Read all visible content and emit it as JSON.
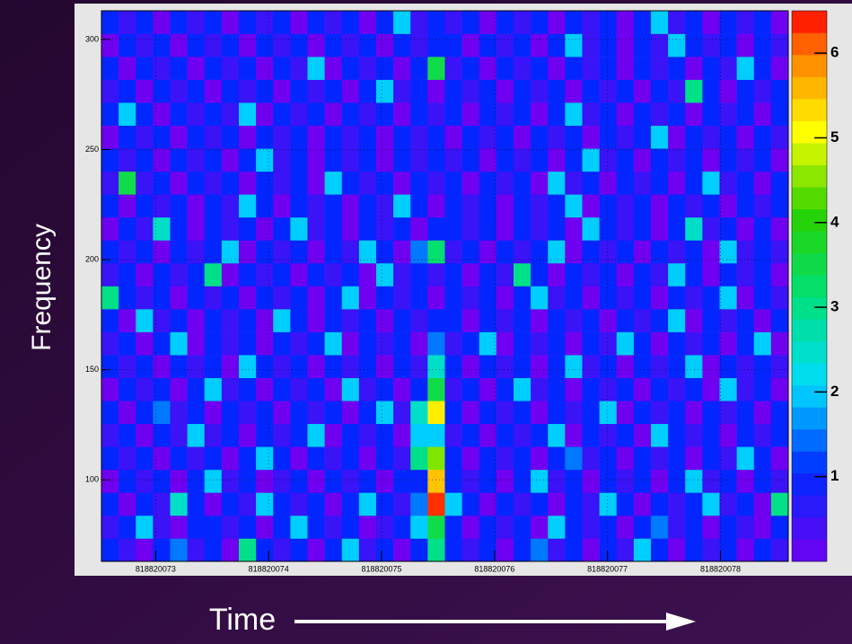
{
  "chart_data": {
    "type": "heatmap",
    "xlabel": "Time",
    "ylabel": "Frequency",
    "xlim": [
      818820072.52,
      818820078.6
    ],
    "xticks": [
      818820073,
      818820074,
      818820075,
      818820076,
      818820077,
      818820078
    ],
    "ylim": [
      63,
      313
    ],
    "yticks": [
      100,
      150,
      200,
      250,
      300
    ],
    "zlim": [
      0,
      6.5
    ],
    "zticks": [
      1,
      2,
      3,
      4,
      5,
      6
    ],
    "grid": true,
    "z": [
      [
        1,
        0.5,
        0,
        1,
        1.5,
        0.5,
        1,
        0,
        3,
        1,
        0.5,
        1,
        0,
        1,
        2,
        0.5,
        1,
        0,
        1,
        3,
        1,
        0.5,
        1,
        0,
        1,
        1.5,
        0.5,
        1,
        0,
        1,
        0.5,
        2,
        1,
        0,
        1,
        0.5,
        1,
        0,
        1,
        0.5
      ],
      [
        0.5,
        1,
        2,
        0.5,
        0,
        1,
        1,
        0.5,
        1,
        0,
        1,
        2,
        1,
        0.5,
        1,
        0,
        0.5,
        1,
        2,
        3.5,
        1,
        0,
        1,
        0.5,
        1,
        0,
        2,
        1,
        0.5,
        1,
        0,
        1,
        1.5,
        0.5,
        1,
        0,
        1,
        0.5,
        0,
        1
      ],
      [
        1,
        0,
        1,
        0.5,
        2.5,
        1,
        0,
        1,
        0.5,
        2,
        1,
        0.5,
        1,
        0,
        1,
        2,
        1,
        0.5,
        1.5,
        6.3,
        2,
        1,
        0,
        1,
        0.5,
        1,
        0,
        1,
        0.5,
        2,
        1,
        0,
        1,
        0.5,
        1,
        2,
        0.5,
        1,
        0,
        3
      ],
      [
        0,
        1,
        0.5,
        1,
        0,
        1,
        2,
        0.5,
        1,
        0,
        0.5,
        1,
        0,
        1,
        0.5,
        1,
        0,
        1,
        1,
        5.5,
        1,
        0.5,
        1,
        0,
        1,
        2,
        0.5,
        1,
        0,
        1,
        0.5,
        1,
        0,
        1,
        2,
        0.5,
        1,
        0,
        1,
        0.5
      ],
      [
        1,
        0.5,
        1,
        0,
        1,
        0.5,
        1,
        0,
        1,
        2,
        1,
        0,
        1,
        0.5,
        1,
        0,
        1,
        0.5,
        3,
        4.5,
        1,
        0,
        1,
        0.5,
        1,
        0,
        1,
        1.5,
        0.5,
        1,
        0,
        1,
        0.5,
        1,
        0,
        1,
        0.5,
        2,
        1,
        0
      ],
      [
        0.5,
        1,
        0,
        1,
        0.5,
        2,
        0.5,
        1,
        0,
        1,
        0.5,
        1,
        2,
        0,
        1,
        0.5,
        1,
        0,
        2,
        2,
        0.5,
        1,
        0,
        1,
        0.5,
        1,
        2,
        0,
        1,
        0.5,
        1,
        0,
        2,
        1,
        0.5,
        1,
        0,
        1,
        0.5,
        1
      ],
      [
        1,
        0,
        1,
        1.5,
        0.5,
        1,
        0,
        1,
        0.5,
        1,
        0,
        1,
        0.5,
        1,
        0,
        1,
        2,
        0.5,
        2.5,
        5.2,
        1,
        0,
        1,
        0.5,
        1,
        0,
        1,
        0.5,
        1,
        2,
        0,
        1,
        0.5,
        1,
        0,
        1,
        0.5,
        1,
        0,
        1
      ],
      [
        0,
        1,
        0.5,
        1,
        0,
        1,
        2,
        0.5,
        1,
        0,
        1,
        0.5,
        1,
        0,
        2,
        0.5,
        1,
        0,
        1,
        3.5,
        0.5,
        1,
        0,
        1,
        2,
        0.5,
        1,
        0,
        1,
        0.5,
        1,
        0,
        1,
        0.5,
        1,
        0,
        2,
        0.5,
        1,
        0
      ],
      [
        1,
        0.5,
        1,
        0,
        1,
        0.5,
        1,
        0,
        2,
        1,
        0.5,
        1,
        0,
        1,
        0.5,
        1,
        0,
        1,
        0.5,
        2.5,
        1,
        0,
        1,
        0.5,
        1,
        0,
        1,
        2,
        0.5,
        1,
        0,
        1,
        0.5,
        1,
        2,
        0,
        1,
        0.5,
        1,
        0.5
      ],
      [
        0.5,
        1,
        0,
        1,
        2,
        0,
        1,
        0.5,
        1,
        0,
        1,
        0.5,
        1,
        2,
        0,
        1,
        0.5,
        1,
        0,
        1.5,
        0.5,
        1,
        2,
        0,
        1,
        0.5,
        1,
        0,
        1,
        0.5,
        2,
        1,
        0,
        1,
        0.5,
        1,
        0,
        1,
        2,
        0
      ],
      [
        1,
        0,
        2,
        0.5,
        1,
        0,
        1,
        0.5,
        1,
        0,
        2,
        1,
        0,
        1,
        0.5,
        1,
        0,
        1,
        0.5,
        1,
        1,
        0,
        1,
        0.5,
        1,
        0,
        1,
        0.5,
        1,
        0,
        1,
        0.5,
        1,
        2,
        0,
        1,
        0.5,
        1,
        0,
        1
      ],
      [
        3,
        1,
        0.5,
        1,
        0,
        1,
        0.5,
        1,
        0,
        1,
        0.5,
        1,
        0,
        1,
        2,
        0,
        1,
        0.5,
        1,
        0,
        1,
        0.5,
        1,
        0,
        1,
        2,
        0.5,
        1,
        0,
        1,
        0.5,
        1,
        0,
        1,
        0.5,
        1,
        2,
        0,
        1,
        0.5
      ],
      [
        0.5,
        1,
        0,
        1,
        0.5,
        1,
        3,
        0,
        1,
        0.5,
        1,
        0,
        1,
        0.5,
        1,
        0,
        2,
        0.5,
        1,
        0.5,
        1,
        0,
        1,
        0.5,
        3,
        1,
        0,
        1,
        0.5,
        1,
        0,
        1,
        0.5,
        2,
        1,
        0,
        1,
        0.5,
        1,
        0
      ],
      [
        1,
        0.5,
        1,
        0,
        1,
        0.5,
        1,
        2,
        0,
        1,
        0.5,
        1,
        0,
        1,
        0.5,
        2,
        1,
        0,
        1.5,
        3.2,
        0.5,
        1,
        0,
        1,
        0.5,
        1,
        2,
        0,
        1,
        0.5,
        1,
        0,
        1,
        0.5,
        1,
        0,
        2,
        0.5,
        1,
        0.5
      ],
      [
        0,
        1,
        0.5,
        2.5,
        1,
        0,
        1,
        0.5,
        1,
        0,
        1,
        2,
        0.5,
        1,
        0,
        1,
        0.5,
        1,
        0,
        1,
        1,
        0.5,
        1,
        0,
        1,
        0.5,
        1,
        0,
        2,
        1,
        0.5,
        1,
        0,
        1,
        2.5,
        0.5,
        1,
        0,
        1,
        0
      ],
      [
        1,
        0,
        1,
        0.5,
        1,
        0,
        1,
        0.5,
        2,
        1,
        0,
        1,
        0.5,
        1,
        0,
        1,
        0.5,
        2,
        1,
        0,
        1,
        0.5,
        1,
        0,
        1,
        0.5,
        1,
        2,
        0,
        1,
        0.5,
        1,
        0,
        1,
        0.5,
        1,
        0,
        1,
        0.5,
        1
      ],
      [
        0.5,
        3.5,
        0.5,
        1,
        0,
        1,
        0.5,
        1,
        0,
        1,
        0.5,
        1,
        0,
        2,
        1,
        0.5,
        1,
        0,
        1,
        0.5,
        1,
        0,
        1,
        0.5,
        1,
        0,
        2,
        0.5,
        1,
        0,
        1,
        0.5,
        1,
        0,
        1,
        2,
        0.5,
        1,
        0,
        1
      ],
      [
        1,
        0.5,
        1,
        0,
        1,
        0.5,
        1,
        0,
        1,
        2,
        0.5,
        1,
        0,
        1,
        0.5,
        1,
        0,
        1,
        0.5,
        1,
        0.5,
        1,
        0,
        1,
        0.5,
        1,
        0,
        1,
        2,
        0.5,
        1,
        0,
        1,
        0.5,
        1,
        0,
        1,
        0.5,
        1,
        0
      ],
      [
        0,
        1,
        0.5,
        1,
        0,
        1,
        0.5,
        1,
        0,
        1,
        0.5,
        1,
        0,
        1,
        0.5,
        1,
        0,
        1,
        0.5,
        1,
        0,
        1,
        0.5,
        1,
        0,
        1,
        0.5,
        1,
        0,
        1,
        0.5,
        1,
        2,
        0,
        1,
        0.5,
        1,
        0,
        1,
        0.5
      ],
      [
        1,
        2,
        1,
        0,
        1,
        0.5,
        1,
        0.5,
        2,
        0,
        1,
        0.5,
        1,
        0,
        1,
        0.5,
        1,
        0,
        1,
        0.5,
        1,
        0,
        1,
        0.5,
        1,
        0,
        1,
        2,
        0.5,
        1,
        0,
        1,
        0.5,
        1,
        0,
        1,
        0.5,
        1,
        0,
        1
      ],
      [
        0.5,
        1,
        0,
        1,
        0.5,
        1,
        0,
        1,
        0.5,
        1,
        0,
        1,
        0.5,
        1,
        0,
        1,
        2,
        0.5,
        1,
        0,
        1,
        0.5,
        1,
        0,
        1,
        0.5,
        1,
        0,
        1,
        0.5,
        1,
        0,
        1,
        0.5,
        3,
        1,
        0,
        1,
        0.5,
        1
      ],
      [
        1,
        0,
        1,
        0.5,
        1,
        0,
        1,
        0.5,
        1,
        0,
        1,
        0.5,
        2,
        0,
        1,
        0.5,
        1,
        0,
        1,
        3.5,
        0.5,
        1,
        0,
        1,
        0.5,
        1,
        0,
        1,
        0.5,
        1,
        0,
        1,
        0.5,
        1,
        0,
        1,
        0.5,
        2,
        1,
        0
      ],
      [
        0,
        1,
        0.5,
        1,
        0,
        1,
        0.5,
        1,
        0,
        1,
        0.5,
        1,
        0,
        1,
        0.5,
        1,
        0,
        1,
        0.5,
        1,
        1,
        0,
        1,
        0.5,
        1,
        0,
        1,
        2,
        0.5,
        1,
        0,
        1,
        0.5,
        2,
        1,
        0.5,
        1,
        0,
        1,
        0.5
      ],
      [
        1,
        0.5,
        1,
        0,
        1,
        0.5,
        1,
        0,
        1,
        0.5,
        1,
        0,
        1,
        0.5,
        1,
        0,
        1,
        2,
        0.5,
        1,
        0.5,
        1,
        0,
        1,
        0.5,
        1,
        0,
        1,
        0.5,
        1,
        0,
        1,
        2,
        0.5,
        1,
        0,
        1,
        0.5,
        1,
        0
      ]
    ]
  }
}
